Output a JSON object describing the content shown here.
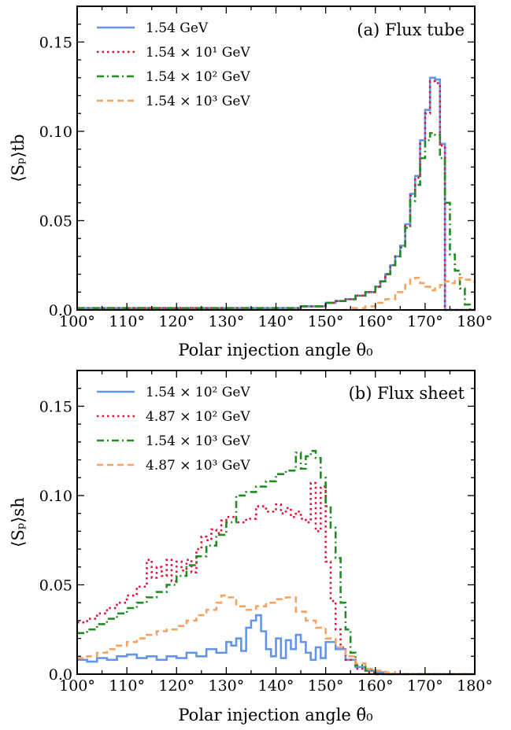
{
  "chart_data": [
    {
      "type": "line",
      "panel_title": "(a) Flux tube",
      "xlabel": "Polar injection angle θ₀",
      "ylabel": "⟨Sₚ⟩tb",
      "xlim": [
        100,
        180
      ],
      "ylim": [
        0,
        0.17
      ],
      "xticks": [
        "100°",
        "110°",
        "120°",
        "130°",
        "140°",
        "150°",
        "160°",
        "170°",
        "180°"
      ],
      "yticks": [
        "0.0",
        "0.05",
        "0.10",
        "0.15"
      ],
      "legend_position": "top-left",
      "step": true,
      "series": [
        {
          "name": "1.54 GeV",
          "color": "#6495ED",
          "dash": "solid",
          "x": [
            100,
            140,
            145,
            150,
            152,
            154,
            156,
            158,
            160,
            161,
            162,
            163,
            164,
            165,
            166,
            167,
            168,
            169,
            170,
            171,
            172,
            173,
            174,
            175,
            180
          ],
          "y": [
            0.001,
            0.001,
            0.002,
            0.004,
            0.005,
            0.006,
            0.008,
            0.01,
            0.013,
            0.016,
            0.02,
            0.025,
            0.03,
            0.036,
            0.048,
            0.065,
            0.075,
            0.095,
            0.112,
            0.13,
            0.129,
            0.093,
            0.0,
            0.0,
            0.0
          ]
        },
        {
          "name": "1.54 × 10¹ GeV",
          "color": "#DC143C",
          "dash": "dotted",
          "x": [
            100,
            140,
            145,
            150,
            152,
            154,
            156,
            158,
            160,
            161,
            162,
            163,
            164,
            165,
            166,
            167,
            168,
            169,
            170,
            171,
            172,
            173,
            174,
            175,
            180
          ],
          "y": [
            0.001,
            0.001,
            0.002,
            0.004,
            0.005,
            0.006,
            0.008,
            0.01,
            0.013,
            0.016,
            0.02,
            0.025,
            0.03,
            0.035,
            0.047,
            0.064,
            0.074,
            0.093,
            0.11,
            0.128,
            0.127,
            0.092,
            0.0,
            0.0,
            0.0
          ]
        },
        {
          "name": "1.54 × 10² GeV",
          "color": "#228B22",
          "dash": "dashdot",
          "x": [
            100,
            140,
            145,
            150,
            152,
            154,
            156,
            158,
            160,
            161,
            162,
            163,
            164,
            165,
            166,
            167,
            168,
            169,
            170,
            171,
            172,
            173,
            174,
            175,
            176,
            177,
            178,
            179,
            180
          ],
          "y": [
            0.001,
            0.001,
            0.002,
            0.004,
            0.005,
            0.006,
            0.008,
            0.01,
            0.013,
            0.016,
            0.02,
            0.025,
            0.03,
            0.035,
            0.046,
            0.061,
            0.07,
            0.085,
            0.095,
            0.099,
            0.098,
            0.085,
            0.06,
            0.031,
            0.022,
            0.012,
            0.003,
            0.0,
            0.0
          ]
        },
        {
          "name": "1.54 × 10³ GeV",
          "color": "#F4A460",
          "dash": "dashed",
          "x": [
            100,
            150,
            155,
            158,
            160,
            162,
            164,
            166,
            167,
            168,
            169,
            170,
            171,
            172,
            173,
            174,
            175,
            176,
            177,
            178,
            179,
            180
          ],
          "y": [
            0.0,
            0.0,
            0.001,
            0.002,
            0.004,
            0.006,
            0.01,
            0.014,
            0.017,
            0.018,
            0.015,
            0.013,
            0.011,
            0.012,
            0.014,
            0.016,
            0.015,
            0.017,
            0.018,
            0.017,
            0.016,
            0.015
          ]
        }
      ]
    },
    {
      "type": "line",
      "panel_title": "(b) Flux sheet",
      "xlabel": "Polar injection angle θ̃₀",
      "ylabel": "⟨Sₚ⟩sh",
      "xlim": [
        100,
        180
      ],
      "ylim": [
        0,
        0.17
      ],
      "xticks": [
        "100°",
        "110°",
        "120°",
        "130°",
        "140°",
        "150°",
        "160°",
        "170°",
        "180°"
      ],
      "yticks": [
        "0.0",
        "0.05",
        "0.10",
        "0.15"
      ],
      "legend_position": "top-left",
      "step": true,
      "series": [
        {
          "name": "1.54 × 10² GeV",
          "color": "#6495ED",
          "dash": "solid",
          "x": [
            100,
            102,
            104,
            106,
            108,
            110,
            112,
            114,
            116,
            118,
            120,
            122,
            124,
            126,
            128,
            130,
            131,
            132,
            133,
            134,
            135,
            136,
            137,
            138,
            139,
            140,
            141,
            142,
            143,
            144,
            145,
            146,
            147,
            148,
            149,
            150,
            152,
            154,
            156,
            158,
            160,
            162,
            180
          ],
          "y": [
            0.008,
            0.007,
            0.009,
            0.008,
            0.01,
            0.011,
            0.009,
            0.01,
            0.008,
            0.01,
            0.009,
            0.012,
            0.01,
            0.014,
            0.012,
            0.018,
            0.016,
            0.02,
            0.013,
            0.026,
            0.03,
            0.033,
            0.024,
            0.014,
            0.01,
            0.02,
            0.009,
            0.019,
            0.014,
            0.022,
            0.018,
            0.012,
            0.008,
            0.015,
            0.009,
            0.018,
            0.014,
            0.008,
            0.004,
            0.002,
            0.001,
            0.0,
            0.0
          ]
        },
        {
          "name": "4.87 × 10² GeV",
          "color": "#DC143C",
          "dash": "dotted",
          "x": [
            100,
            102,
            104,
            106,
            108,
            110,
            112,
            114,
            115,
            116,
            117,
            118,
            119,
            120,
            121,
            122,
            123,
            124,
            125,
            126,
            127,
            128,
            129,
            130,
            132,
            134,
            136,
            138,
            140,
            141,
            142,
            143,
            144,
            145,
            146,
            147,
            148,
            149,
            150,
            151,
            152,
            153,
            154,
            156,
            158,
            160,
            180
          ],
          "y": [
            0.029,
            0.031,
            0.034,
            0.037,
            0.04,
            0.044,
            0.049,
            0.064,
            0.054,
            0.06,
            0.055,
            0.064,
            0.052,
            0.063,
            0.058,
            0.064,
            0.057,
            0.07,
            0.077,
            0.075,
            0.081,
            0.079,
            0.086,
            0.088,
            0.085,
            0.087,
            0.094,
            0.091,
            0.095,
            0.09,
            0.093,
            0.088,
            0.091,
            0.087,
            0.085,
            0.107,
            0.08,
            0.105,
            0.063,
            0.041,
            0.025,
            0.015,
            0.008,
            0.003,
            0.001,
            0.0,
            0.0
          ]
        },
        {
          "name": "1.54 × 10³ GeV",
          "color": "#228B22",
          "dash": "dashdot",
          "x": [
            100,
            102,
            104,
            106,
            108,
            110,
            112,
            114,
            116,
            118,
            120,
            122,
            124,
            126,
            128,
            130,
            132,
            134,
            136,
            138,
            140,
            142,
            144,
            145,
            146,
            147,
            148,
            149,
            150,
            151,
            152,
            153,
            154,
            155,
            156,
            158,
            160,
            180
          ],
          "y": [
            0.023,
            0.025,
            0.028,
            0.031,
            0.034,
            0.037,
            0.04,
            0.043,
            0.046,
            0.05,
            0.055,
            0.061,
            0.066,
            0.072,
            0.078,
            0.085,
            0.1,
            0.102,
            0.105,
            0.108,
            0.112,
            0.114,
            0.124,
            0.115,
            0.122,
            0.125,
            0.121,
            0.11,
            0.094,
            0.082,
            0.065,
            0.04,
            0.025,
            0.012,
            0.005,
            0.002,
            0.0,
            0.0
          ]
        },
        {
          "name": "4.87 × 10³ GeV",
          "color": "#F4A460",
          "dash": "dashed",
          "x": [
            100,
            102,
            104,
            106,
            108,
            110,
            112,
            114,
            116,
            118,
            120,
            122,
            124,
            126,
            128,
            129,
            130,
            132,
            134,
            136,
            138,
            140,
            142,
            144,
            146,
            148,
            150,
            152,
            154,
            156,
            158,
            160,
            162,
            164,
            180
          ],
          "y": [
            0.009,
            0.01,
            0.012,
            0.014,
            0.016,
            0.018,
            0.02,
            0.022,
            0.024,
            0.025,
            0.027,
            0.03,
            0.033,
            0.036,
            0.04,
            0.044,
            0.043,
            0.038,
            0.036,
            0.038,
            0.04,
            0.042,
            0.043,
            0.035,
            0.03,
            0.026,
            0.02,
            0.015,
            0.01,
            0.006,
            0.003,
            0.002,
            0.001,
            0.0,
            0.0
          ]
        }
      ]
    }
  ]
}
